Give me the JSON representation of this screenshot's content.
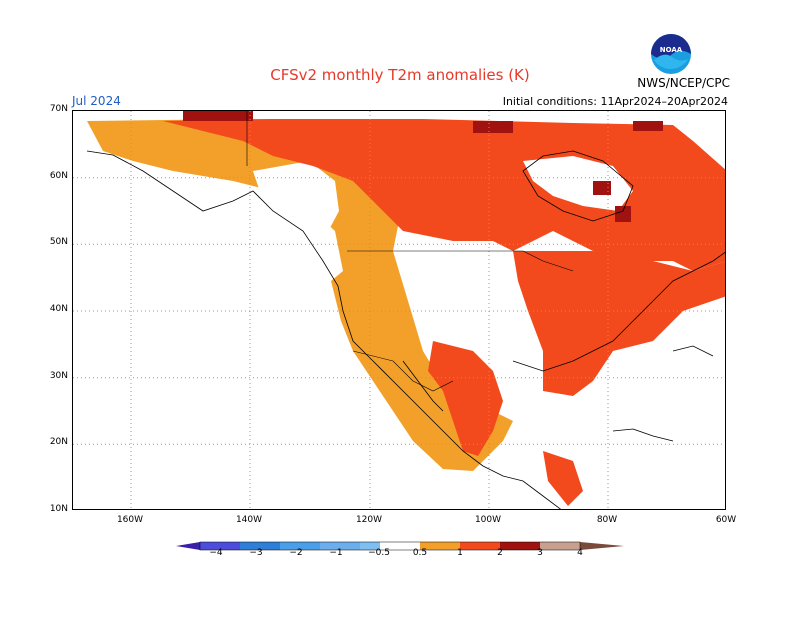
{
  "title": "CFSv2 monthly T2m anomalies (K)",
  "month": "Jul 2024",
  "initial_conditions": "Initial conditions: 11Apr2024–20Apr2024",
  "org": "NWS/NCEP/CPC",
  "logo_text": "NOAA",
  "lat_labels": [
    "70N",
    "60N",
    "50N",
    "40N",
    "30N",
    "20N",
    "10N"
  ],
  "lon_labels": [
    "160W",
    "140W",
    "120W",
    "100W",
    "80W",
    "60W"
  ],
  "colorbar": {
    "labels": [
      "−4",
      "−3",
      "−2",
      "−1",
      "−0.5",
      "0.5",
      "1",
      "2",
      "3",
      "4"
    ],
    "colors": [
      "#3b1fa8",
      "#4d4ddc",
      "#2f7fd8",
      "#4b9ee8",
      "#7fbef0",
      "#ffffff",
      "#f3a02a",
      "#f24a1c",
      "#cc2a16",
      "#a0120f",
      "#c8a090",
      "#7a4a3a"
    ]
  }
}
